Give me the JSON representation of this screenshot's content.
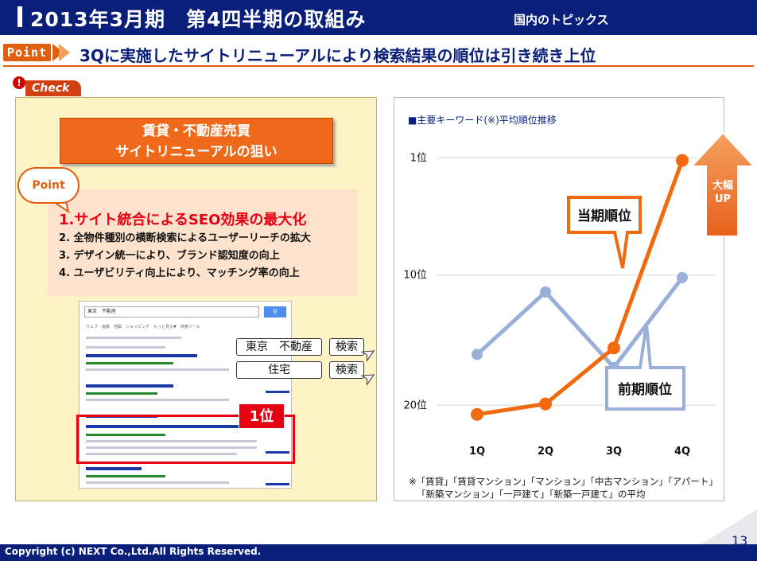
{
  "header": {
    "title": "2013年3月期　第4四半期の取組み",
    "tag": "国内のトピックス"
  },
  "point_row": {
    "tag": "Point",
    "text": "3Qに実施したサイトリニューアルにより検索結果の順位は引き続き上位"
  },
  "check": {
    "badge": "!",
    "label": "Check",
    "purpose_line1": "賃貸・不動産売買",
    "purpose_line2": "サイトリニューアルの狙い",
    "bubble": "Point",
    "items": [
      "1.サイト統合によるSEO効果の最大化",
      "2. 全物件種別の横断検索によるユーザーリーチの拡大",
      "3. デザイン統一により、ブランド認知度の向上",
      "4. ユーザビリティ向上により、マッチング率の向上"
    ],
    "serp_query": "東京　不動産",
    "serp_tabs": "ウェブ　画像　地図　ショッピング　もっと見る▼　検索ツール",
    "first_tag": "1位",
    "keywords": [
      {
        "word": "東京　不動産",
        "button": "検索"
      },
      {
        "word": "住宅",
        "button": "検索"
      }
    ]
  },
  "chart_data": {
    "type": "line",
    "title": "■主要キーワード(※)平均順位推移",
    "categories": [
      "1Q",
      "2Q",
      "3Q",
      "4Q"
    ],
    "y_ticks": [
      "1位",
      "10位",
      "20位"
    ],
    "ylim": [
      22,
      0
    ],
    "y_reversed": true,
    "grid": true,
    "series": [
      {
        "name": "当期順位",
        "color": "#f26a10",
        "values": [
          20.7,
          19.9,
          15.6,
          1.2
        ]
      },
      {
        "name": "前期順位",
        "color": "#9ab0d8",
        "values": [
          16.1,
          11.3,
          17.1,
          10.2
        ]
      }
    ],
    "annotation": {
      "text_line1": "大幅",
      "text_line2": "UP"
    },
    "note_line1": "※「賃貸」「賃貸マンション」「マンション」「中古マンション」「アパート」",
    "note_line2": "「新築マンション」「一戸建て」「新築一戸建て」の平均"
  },
  "footer": {
    "copyright": "Copyright  (c) NEXT Co.,Ltd.All Rights Reserved.",
    "page": "13"
  },
  "colors": {
    "navy": "#0a1f7a",
    "orange": "#e06010",
    "red": "#e60012",
    "light_blue": "#9ab0d8"
  }
}
